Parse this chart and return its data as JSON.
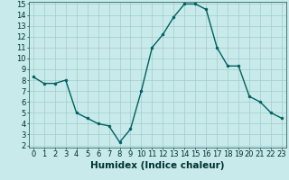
{
  "x": [
    0,
    1,
    2,
    3,
    4,
    5,
    6,
    7,
    8,
    9,
    10,
    11,
    12,
    13,
    14,
    15,
    16,
    17,
    18,
    19,
    20,
    21,
    22,
    23
  ],
  "y": [
    8.3,
    7.7,
    7.7,
    8.0,
    5.0,
    4.5,
    4.0,
    3.8,
    2.3,
    3.5,
    7.0,
    11.0,
    12.2,
    13.8,
    15.0,
    15.0,
    14.5,
    11.0,
    9.3,
    9.3,
    6.5,
    6.0,
    5.0,
    4.5
  ],
  "line_color": "#006060",
  "marker": "o",
  "marker_size": 2.0,
  "line_width": 1.0,
  "bg_color": "#c8eaea",
  "grid_color": "#a0cccc",
  "xlabel": "Humidex (Indice chaleur)",
  "xlabel_fontsize": 7.5,
  "ylim_min": 2,
  "ylim_max": 15,
  "xlim_min": 0,
  "xlim_max": 23,
  "yticks": [
    2,
    3,
    4,
    5,
    6,
    7,
    8,
    9,
    10,
    11,
    12,
    13,
    14,
    15
  ],
  "xticks": [
    0,
    1,
    2,
    3,
    4,
    5,
    6,
    7,
    8,
    9,
    10,
    11,
    12,
    13,
    14,
    15,
    16,
    17,
    18,
    19,
    20,
    21,
    22,
    23
  ],
  "tick_fontsize": 6.0,
  "tick_color": "#003030",
  "spine_color": "#336666"
}
